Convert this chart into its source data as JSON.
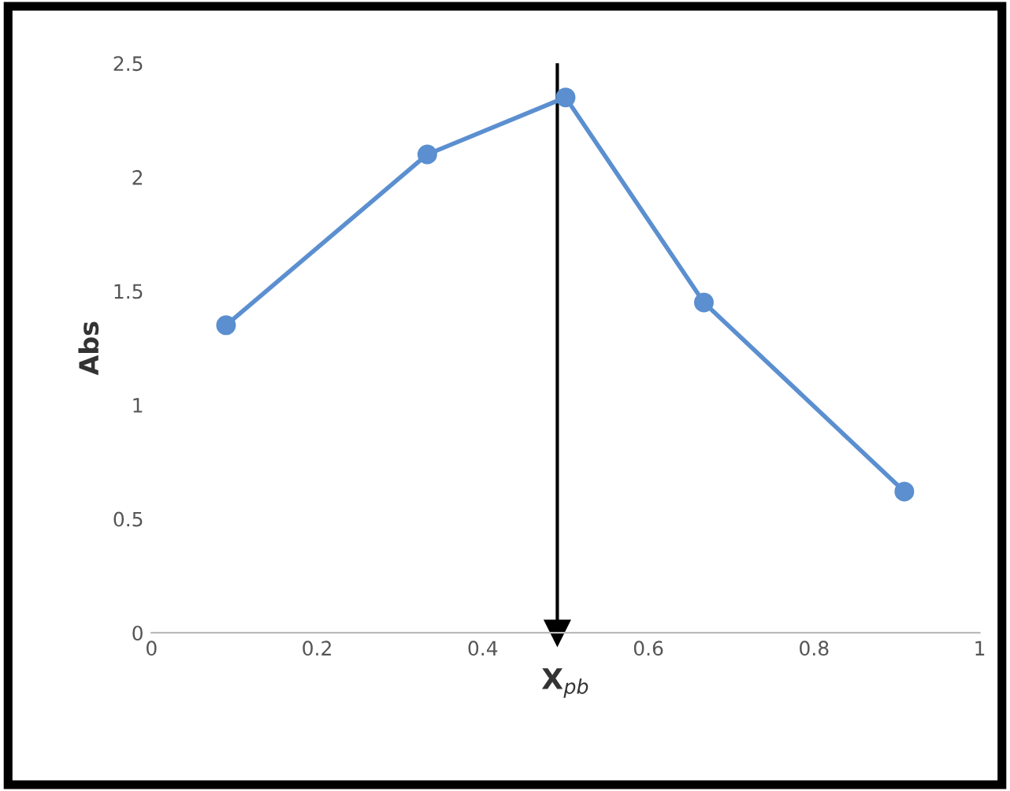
{
  "chart_data": {
    "type": "line",
    "xlabel": "X$_{pb}$",
    "ylabel": "Abs",
    "x": [
      0.09,
      0.333,
      0.5,
      0.667,
      0.909
    ],
    "series": [
      {
        "color": "#5b8fd0",
        "values": [
          1.35,
          2.1,
          2.35,
          1.45,
          0.62
        ]
      }
    ],
    "xlim": [
      0,
      1
    ],
    "xticks": [
      0,
      0.2,
      0.4,
      0.6,
      0.8,
      1
    ],
    "ylim": [
      0,
      2.5
    ],
    "yticks": [
      0,
      0.5,
      1,
      1.5,
      2,
      2.5
    ],
    "ref_lines": [
      {
        "axis": "x",
        "value": 0.49,
        "color": "#000000"
      }
    ],
    "marker": "circle",
    "line_style": "solid",
    "grid": false,
    "legend": false
  }
}
